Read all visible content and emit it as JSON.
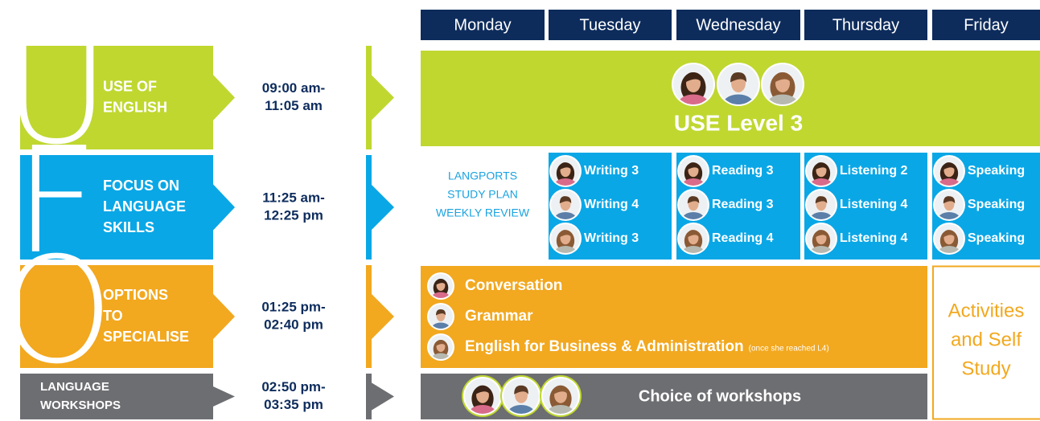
{
  "days": [
    "Monday",
    "Tuesday",
    "Wednesday",
    "Thursday",
    "Friday"
  ],
  "rows": [
    {
      "letter": "U",
      "label": [
        "USE OF",
        "ENGLISH"
      ],
      "time": [
        "09:00 am-",
        "11:05 am"
      ]
    },
    {
      "letter": "F",
      "label": [
        "FOCUS ON",
        "LANGUAGE",
        "SKILLS"
      ],
      "time": [
        "11:25 am-",
        "12:25 pm"
      ]
    },
    {
      "letter": "O",
      "label": [
        "OPTIONS",
        "TO",
        "SPECIALISE"
      ],
      "time": [
        "01:25 pm-",
        "02:40 pm"
      ]
    },
    {
      "label": [
        "LANGUAGE",
        "WORKSHOPS"
      ],
      "time": [
        "02:50 pm-",
        "03:35 pm"
      ]
    }
  ],
  "use_english": {
    "title": "USE Level 3"
  },
  "language_skills": {
    "review": [
      "LANGPORTS",
      "STUDY PLAN",
      "WEEKLY REVIEW"
    ],
    "classes": [
      [
        "Writing 3",
        "Writing 4",
        "Writing 3"
      ],
      [
        "Reading 3",
        "Reading 3",
        "Reading 4"
      ],
      [
        "Listening 2",
        "Listening 4",
        "Listening 4"
      ],
      [
        "Speaking",
        "Speaking",
        "Speaking"
      ]
    ]
  },
  "options": {
    "items": [
      "Conversation",
      "Grammar",
      "English for Business & Administration"
    ],
    "note": "(once she reached L4)"
  },
  "friday_afternoon": [
    "Activities",
    "and Self",
    "Study"
  ],
  "workshops": {
    "title": "Choice of workshops"
  }
}
